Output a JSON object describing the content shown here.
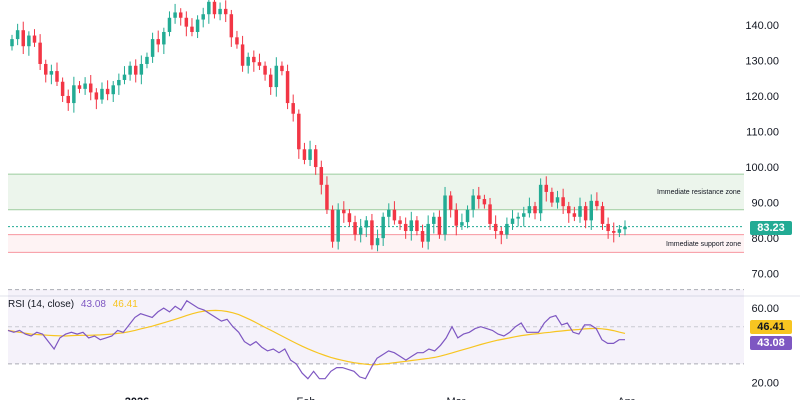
{
  "colors": {
    "up": "#22ab94",
    "down": "#f23645",
    "resistance_zone": "#43a047",
    "support_zone": "#f23645",
    "rsi_line": "#7e57c2",
    "rsi_ma_line": "#f7c521",
    "rsi_band": "#7e57c2",
    "price_tag": "#22ab94",
    "rsi_tag": "#7e57c2",
    "rsi_ma_tag": "#f7c521"
  },
  "annotations": {
    "resistance_label": "Immediate resistance zone",
    "support_label": "Immediate support zone"
  },
  "price_axis": {
    "current_price": "83.23"
  },
  "rsi_legend": {
    "label": "RSI (14, close)",
    "rsi_value": "43.08",
    "ma_value": "46.41"
  },
  "chart_data": [
    {
      "type": "candlestick",
      "ylim": [
        64,
        147
      ],
      "y_ticks": [
        70,
        80,
        90,
        100,
        110,
        120,
        130,
        140
      ],
      "x_tick_labels": [
        "2026",
        "Feb",
        "Mar",
        "Apr"
      ],
      "resistance_zone": [
        88,
        98
      ],
      "support_zone": [
        76,
        81
      ],
      "current_price": 83.23,
      "closes": [
        136,
        138.5,
        134,
        137,
        135,
        129,
        126,
        127,
        124,
        120,
        118,
        123,
        122,
        123.5,
        121,
        119,
        122,
        120.5,
        123,
        124.5,
        126,
        128.5,
        126,
        129,
        131,
        136,
        134.5,
        138,
        142,
        143.5,
        142,
        139.5,
        138,
        141.5,
        143,
        146.5,
        143,
        144.5,
        143,
        136.5,
        134.5,
        128.5,
        131,
        129.5,
        128.5,
        126,
        122.5,
        128.5,
        127,
        118,
        115,
        105,
        102,
        105,
        100,
        95,
        88,
        79,
        88,
        87,
        84.5,
        81,
        83,
        85,
        78,
        80,
        86,
        88,
        85,
        84,
        82,
        85,
        82,
        79,
        84,
        86,
        81,
        92,
        88,
        83.5,
        84.5,
        88,
        92,
        91,
        89.5,
        84,
        82,
        81,
        84,
        85.5,
        86,
        87,
        89,
        87,
        95,
        93,
        90,
        91.5,
        89,
        87,
        86,
        89,
        85,
        90.5,
        89,
        84,
        82,
        81.5,
        82.5,
        83.2
      ]
    },
    {
      "type": "line",
      "title": "RSI (14, close)",
      "ylim": [
        17,
        66
      ],
      "y_ticks": [
        20,
        40,
        60
      ],
      "bands": [
        30,
        50,
        70
      ],
      "series": [
        {
          "name": "RSI",
          "values": [
            48,
            47,
            48,
            46,
            45,
            47,
            46,
            42,
            38,
            44,
            46,
            47,
            46,
            47,
            44,
            45,
            43,
            44,
            45,
            48,
            47,
            51,
            55,
            57,
            56,
            55,
            58,
            60,
            58,
            61,
            59,
            64,
            62,
            60,
            59,
            57,
            55,
            53,
            54,
            50,
            47,
            42,
            40,
            42,
            39,
            37,
            38,
            36,
            38,
            32,
            30,
            25,
            22,
            26,
            22,
            22,
            26,
            28,
            28,
            27,
            26,
            23,
            22,
            28,
            33,
            35,
            37,
            36,
            34,
            32,
            34,
            36,
            36,
            38,
            37,
            40,
            44,
            50,
            44,
            46,
            47,
            49,
            50,
            49,
            48,
            46,
            45,
            47,
            50,
            52,
            47,
            47,
            47,
            52,
            55,
            56,
            51,
            52,
            47,
            46,
            51,
            51,
            49,
            43,
            41,
            41,
            43,
            43
          ]
        },
        {
          "name": "MA",
          "values": [
            48,
            47.5,
            47,
            46.5,
            46,
            45.8,
            45.6,
            45.4,
            45.2,
            45.1,
            45,
            45.2,
            45.3,
            45.4,
            45.4,
            45.5,
            45.6,
            45.8,
            46,
            46.4,
            46.7,
            47.3,
            48,
            48.8,
            49.5,
            50.3,
            51.2,
            52.1,
            53,
            54,
            55,
            56.1,
            57,
            57.8,
            58.4,
            58.7,
            58.8,
            58.6,
            58.2,
            57.5,
            56.5,
            55.2,
            53.8,
            52.2,
            50.6,
            49,
            47.4,
            45.8,
            44.2,
            42.6,
            41,
            39.5,
            38.1,
            36.8,
            35.6,
            34.5,
            33.5,
            32.6,
            31.9,
            31.2,
            30.6,
            30.2,
            29.8,
            29.5,
            29.6,
            29.9,
            30.2,
            30.6,
            31,
            31.4,
            31.8,
            32.2,
            32.6,
            33,
            33.5,
            34.2,
            35,
            35.9,
            36.8,
            37.7,
            38.6,
            39.5,
            40.4,
            41.3,
            42.1,
            42.8,
            43.4,
            44,
            44.6,
            45.2,
            45.6,
            46,
            46.3,
            46.7,
            47,
            47.4,
            47.7,
            48,
            48.3,
            48.5,
            48.8,
            49,
            49.1,
            48.9,
            48.5,
            47.9,
            47.1,
            46.41
          ]
        }
      ]
    }
  ]
}
